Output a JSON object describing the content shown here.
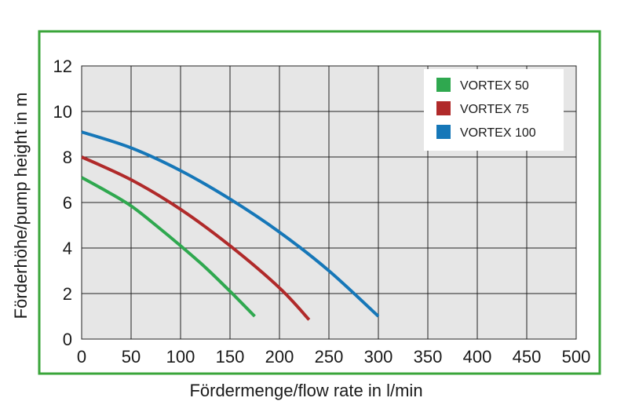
{
  "chart_data": {
    "type": "line",
    "title": "",
    "xlabel": "Fördermenge/flow rate in l/min",
    "ylabel": "Förderhöhe/pump height in m",
    "xlim": [
      0,
      500
    ],
    "ylim": [
      0,
      12
    ],
    "xticks": [
      "0",
      "50",
      "100",
      "150",
      "200",
      "250",
      "300",
      "350",
      "400",
      "450",
      "500"
    ],
    "yticks": [
      "0",
      "2",
      "4",
      "6",
      "8",
      "10",
      "12"
    ],
    "grid": true,
    "legend_position": "top-right",
    "frame_color": "#3aa53a",
    "series": [
      {
        "name": "VORTEX 50",
        "color": "#2fa84f",
        "x": [
          0,
          25,
          50,
          75,
          100,
          125,
          150,
          175
        ],
        "y": [
          7.1,
          6.5,
          5.85,
          5.0,
          4.1,
          3.15,
          2.1,
          1.0
        ]
      },
      {
        "name": "VORTEX 75",
        "color": "#b02a2a",
        "x": [
          0,
          50,
          100,
          150,
          200,
          230
        ],
        "y": [
          8.0,
          7.0,
          5.7,
          4.1,
          2.25,
          0.85
        ]
      },
      {
        "name": "VORTEX 100",
        "color": "#1677b8",
        "x": [
          0,
          50,
          100,
          150,
          200,
          250,
          300
        ],
        "y": [
          9.1,
          8.4,
          7.4,
          6.15,
          4.7,
          3.0,
          1.0
        ]
      }
    ]
  }
}
